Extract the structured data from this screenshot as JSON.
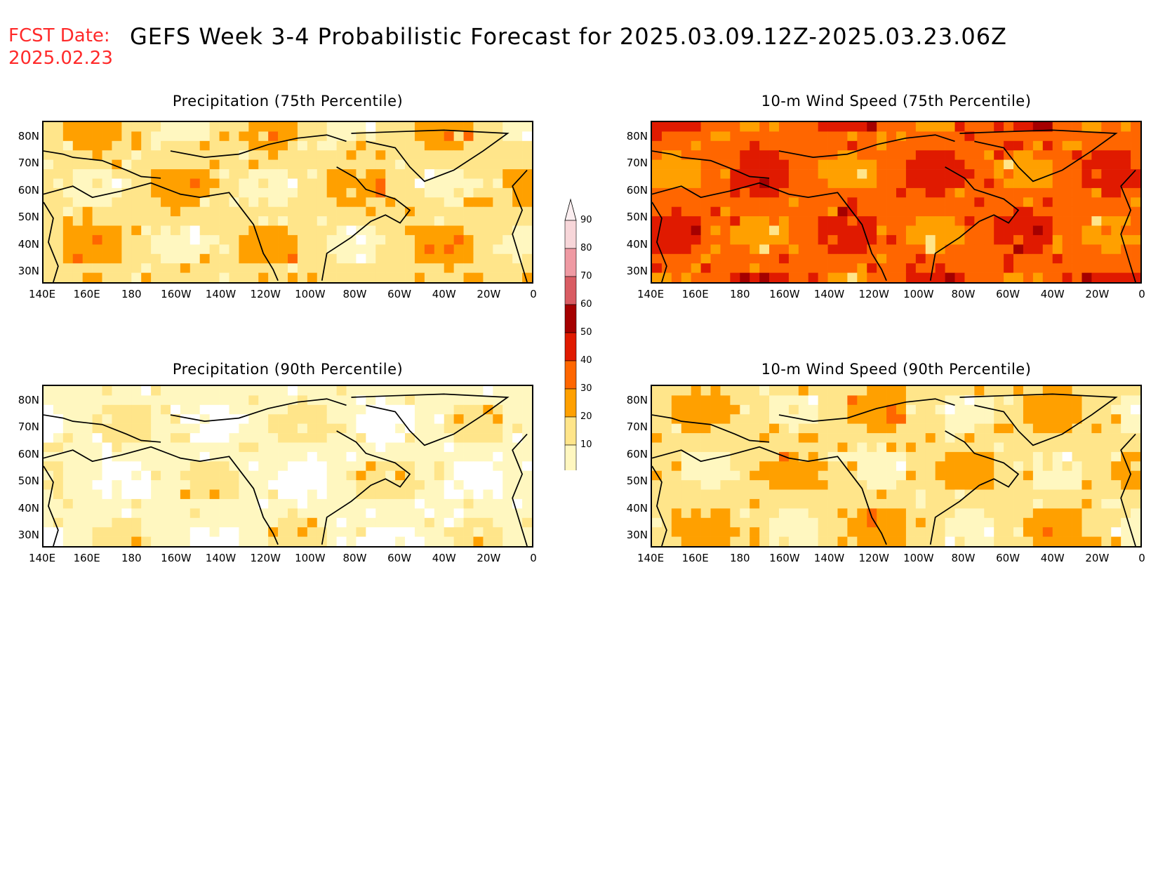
{
  "header": {
    "fcst_label": "FCST Date:",
    "fcst_date": "2025.02.23",
    "title": "GEFS Week 3-4 Probabilistic Forecast for 2025.03.09.12Z-2025.03.23.06Z"
  },
  "axes": {
    "lat_ticks": [
      "80N",
      "70N",
      "60N",
      "50N",
      "40N",
      "30N"
    ],
    "lon_ticks": [
      "140E",
      "160E",
      "180",
      "160W",
      "140W",
      "120W",
      "100W",
      "80W",
      "60W",
      "40W",
      "20W",
      "0"
    ]
  },
  "panels": [
    {
      "id": "precip75",
      "title": "Precipitation (75th Percentile)",
      "level": 2
    },
    {
      "id": "wind75",
      "title": "10-m Wind Speed (75th Percentile)",
      "level": 4
    },
    {
      "id": "precip90",
      "title": "Precipitation (90th Percentile)",
      "level": 1
    },
    {
      "id": "wind90",
      "title": "10-m Wind Speed (90th Percentile)",
      "level": 2
    }
  ],
  "colorbar": {
    "labels": [
      "90",
      "80",
      "70",
      "60",
      "50",
      "40",
      "30",
      "20",
      "10"
    ],
    "colors": [
      "#f7d6d9",
      "#ef9aa3",
      "#d95c63",
      "#a50000",
      "#e01a00",
      "#ff6600",
      "#ffa000",
      "#ffe58a",
      "#fff7c0"
    ]
  }
}
